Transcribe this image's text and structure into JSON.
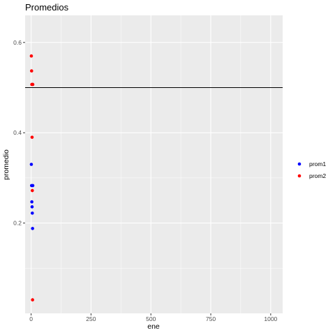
{
  "chart_data": {
    "type": "scatter",
    "title": "Promedios",
    "xlabel": "ene",
    "ylabel": "promedio",
    "xlim": [
      -25,
      1050
    ],
    "ylim": [
      0.0,
      0.66
    ],
    "x_ticks": [
      0,
      250,
      500,
      750,
      1000
    ],
    "x_tick_labels": [
      "0",
      "250",
      "500",
      "750",
      "1000"
    ],
    "y_ticks": [
      0.2,
      0.4,
      0.6
    ],
    "y_tick_labels": [
      "0.2",
      "0.4",
      "0.6"
    ],
    "grid": true,
    "legend_position": "right",
    "hline": 0.5,
    "colors": {
      "panel": "#ebebeb",
      "grid": "#ffffff",
      "prom1": "#0000ff",
      "prom2": "#ff0000",
      "hline": "#000000"
    },
    "series": [
      {
        "name": "prom1",
        "color": "#0000ff",
        "x": [
          1,
          2,
          3,
          4,
          5,
          6,
          7
        ],
        "y": [
          0.33,
          0.283,
          0.247,
          0.236,
          0.222,
          0.188,
          0.283
        ]
      },
      {
        "name": "prom2",
        "color": "#ff0000",
        "x": [
          1,
          2,
          3,
          4,
          5,
          6,
          7
        ],
        "y": [
          0.57,
          0.537,
          0.507,
          0.39,
          0.272,
          0.03,
          0.507
        ]
      }
    ]
  }
}
